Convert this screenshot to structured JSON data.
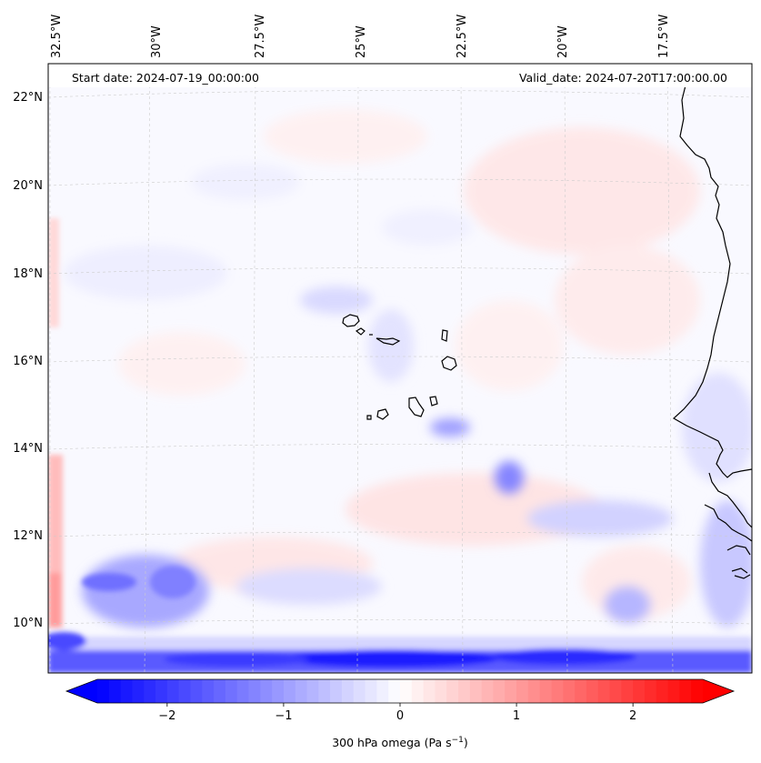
{
  "map": {
    "start_date": "Start date: 2024-07-19_00:00:00",
    "valid_date": "Valid_date: 2024-07-20T17:00:00.00",
    "longitude_labels": [
      "32.5°W",
      "30°W",
      "27.5°W",
      "25°W",
      "22.5°W",
      "20°W",
      "17.5°W"
    ],
    "latitude_labels": [
      "22°N",
      "20°N",
      "18°N",
      "16°N",
      "14°N",
      "12°N",
      "10°N"
    ],
    "gridlines": true,
    "coastline_color": "#000000",
    "region": "Cape Verde and West African coast"
  },
  "colorbar": {
    "title": "300 hPa omega (Pa s",
    "title_exponent": "−1",
    "title_close": ")",
    "ticks": [
      "−2",
      "−1",
      "0",
      "1",
      "2"
    ],
    "tick_values": [
      -2,
      -1,
      0,
      1,
      2
    ],
    "range": [
      -2.6,
      2.6
    ],
    "extend": "both",
    "colormap": "bwr",
    "low_color": "#0000ff",
    "mid_color": "#ffffff",
    "high_color": "#ff0000"
  }
}
